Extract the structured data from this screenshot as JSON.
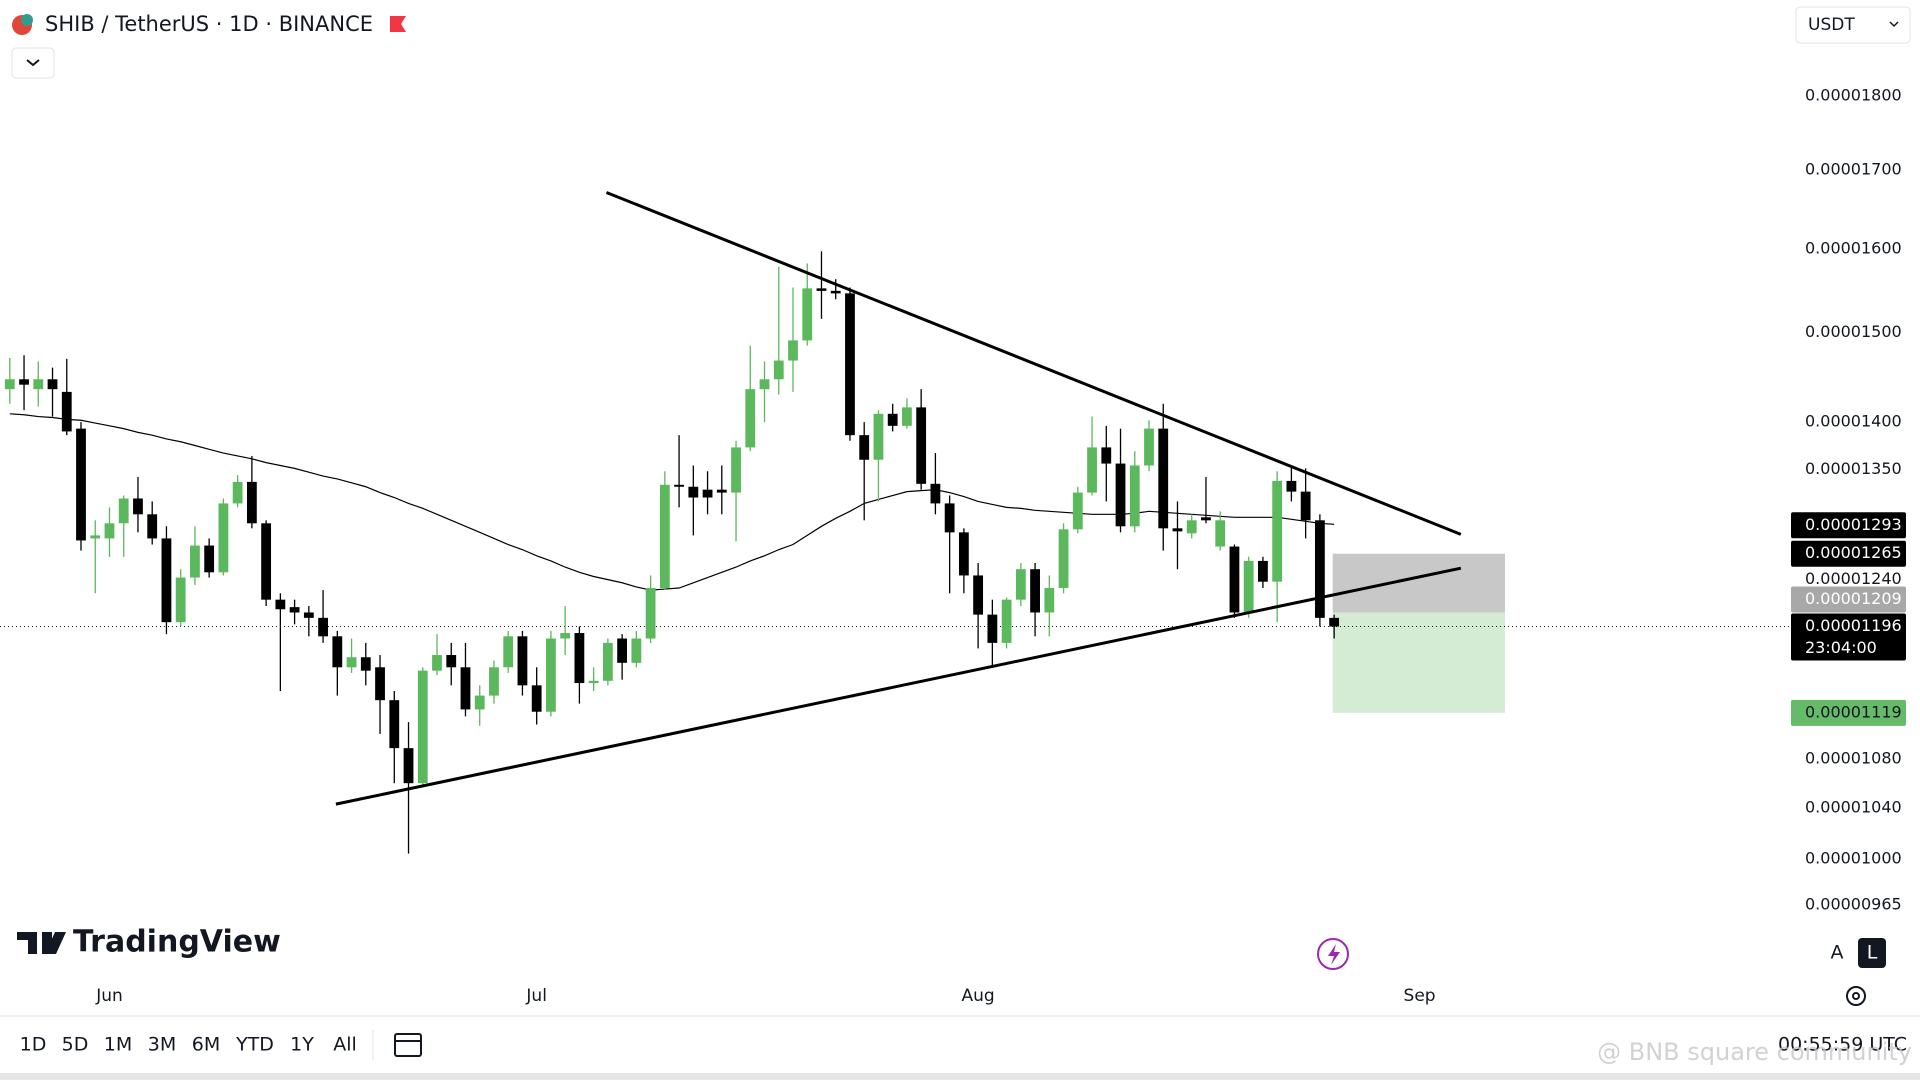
{
  "header": {
    "symbol_title": "SHIB / TetherUS · 1D · BINANCE",
    "currency": "USDT"
  },
  "chart_data": {
    "type": "candlestick",
    "categories": [
      null,
      null,
      null,
      null,
      null,
      null,
      null,
      "Jun",
      null,
      null,
      null,
      null,
      null,
      null,
      null,
      null,
      null,
      null,
      null,
      null,
      null,
      null,
      null,
      null,
      null,
      null,
      null,
      null,
      null,
      null,
      null,
      null,
      null,
      null,
      null,
      null,
      null,
      "Jul",
      null,
      null,
      null,
      null,
      null,
      null,
      null,
      null,
      null,
      null,
      null,
      null,
      null,
      null,
      null,
      null,
      null,
      null,
      null,
      null,
      null,
      null,
      null,
      null,
      null,
      null,
      null,
      null,
      null,
      null,
      "Aug",
      null,
      null,
      null,
      null,
      null,
      null,
      null,
      null,
      null,
      null,
      null,
      null,
      null,
      null,
      null,
      null,
      null,
      null,
      null,
      null,
      null,
      null,
      null,
      null,
      null,
      null,
      null,
      null,
      null,
      null,
      "Sep"
    ],
    "open": [
      1.436e-05,
      1.447e-05,
      1.436e-05,
      1.447e-05,
      1.433e-05,
      1.393e-05,
      1.28e-05,
      1.28e-05,
      1.295e-05,
      1.32e-05,
      1.304e-05,
      1.28e-05,
      1.2e-05,
      1.242e-05,
      1.273e-05,
      1.247e-05,
      1.315e-05,
      1.337e-05,
      1.295e-05,
      1.221e-05,
      1.214e-05,
      1.209e-05,
      1.204e-05,
      1.187e-05,
      1.159e-05,
      1.168e-05,
      1.159e-05,
      1.13e-05,
      1.089e-05,
      1.06e-05,
      1.156e-05,
      1.17e-05,
      1.159e-05,
      1.122e-05,
      1.134e-05,
      1.159e-05,
      1.187e-05,
      1.143e-05,
      1.12e-05,
      1.185e-05,
      1.19e-05,
      1.145e-05,
      1.147e-05,
      1.185e-05,
      1.163e-05,
      1.185e-05,
      1.232e-05,
      1.334e-05,
      1.332e-05,
      1.329e-05,
      1.329e-05,
      1.326e-05,
      1.373e-05,
      1.436e-05,
      1.447e-05,
      1.468e-05,
      1.491e-05,
      1.552e-05,
      1.549e-05,
      1.546e-05,
      1.386e-05,
      1.36e-05,
      1.409e-05,
      1.396e-05,
      1.416e-05,
      1.335e-05,
      1.315e-05,
      1.286e-05,
      1.244e-05,
      1.207e-05,
      1.181e-05,
      1.221e-05,
      1.25e-05,
      1.209e-05,
      1.232e-05,
      1.289e-05,
      1.326e-05,
      1.373e-05,
      1.356e-05,
      1.292e-05,
      1.354e-05,
      1.393e-05,
      1.29e-05,
      1.285e-05,
      1.301e-05,
      1.272e-05,
      1.272e-05,
      1.209e-05,
      1.258e-05,
      1.238e-05,
      1.338e-05,
      1.327e-05,
      1.298e-05,
      1.204e-05,
      null,
      null,
      null,
      null,
      null,
      null
    ],
    "high": [
      1.471e-05,
      1.474e-05,
      1.467e-05,
      1.46e-05,
      1.47e-05,
      1.4e-05,
      1.298e-05,
      1.311e-05,
      1.323e-05,
      1.342e-05,
      1.317e-05,
      1.292e-05,
      1.25e-05,
      1.292e-05,
      1.28e-05,
      1.32e-05,
      1.344e-05,
      1.364e-05,
      1.298e-05,
      1.227e-05,
      1.221e-05,
      1.215e-05,
      1.23e-05,
      1.192e-05,
      1.185e-05,
      1.181e-05,
      1.17e-05,
      1.138e-05,
      1.111e-05,
      1.159e-05,
      1.189e-05,
      1.181e-05,
      1.181e-05,
      1.143e-05,
      1.165e-05,
      1.192e-05,
      1.192e-05,
      1.159e-05,
      1.192e-05,
      1.215e-05,
      1.196e-05,
      1.159e-05,
      1.185e-05,
      1.189e-05,
      1.192e-05,
      1.244e-05,
      1.348e-05,
      1.386e-05,
      1.354e-05,
      1.348e-05,
      1.354e-05,
      1.38e-05,
      1.485e-05,
      1.467e-05,
      1.578e-05,
      1.553e-05,
      1.582e-05,
      1.597e-05,
      1.563e-05,
      1.553e-05,
      1.4e-05,
      1.413e-05,
      1.42e-05,
      1.426e-05,
      1.436e-05,
      1.367e-05,
      1.323e-05,
      1.29e-05,
      1.256e-05,
      1.221e-05,
      1.223e-05,
      1.256e-05,
      1.256e-05,
      1.244e-05,
      1.295e-05,
      1.332e-05,
      1.406e-05,
      1.396e-05,
      1.393e-05,
      1.369e-05,
      1.402e-05,
      1.42e-05,
      1.317e-05,
      1.304e-05,
      1.342e-05,
      1.307e-05,
      1.274e-05,
      1.262e-05,
      1.262e-05,
      1.348e-05,
      1.354e-05,
      1.351e-05,
      1.304e-05,
      1.207e-05,
      null,
      null,
      null,
      null,
      null,
      null
    ],
    "low": [
      1.42e-05,
      1.413e-05,
      1.417e-05,
      1.406e-05,
      1.386e-05,
      1.268e-05,
      1.227e-05,
      1.262e-05,
      1.262e-05,
      1.286e-05,
      1.274e-05,
      1.189e-05,
      1.196e-05,
      1.235e-05,
      1.242e-05,
      1.244e-05,
      1.311e-05,
      1.29e-05,
      1.215e-05,
      1.138e-05,
      1.198e-05,
      1.187e-05,
      1.181e-05,
      1.134e-05,
      1.154e-05,
      1.143e-05,
      1.101e-05,
      1.06e-05,
      1.004e-05,
      1.058e-05,
      1.152e-05,
      1.143e-05,
      1.116e-05,
      1.108e-05,
      1.127e-05,
      1.154e-05,
      1.134e-05,
      1.109e-05,
      1.116e-05,
      1.17e-05,
      1.127e-05,
      1.138e-05,
      1.143e-05,
      1.148e-05,
      1.159e-05,
      1.181e-05,
      1.23e-05,
      1.311e-05,
      1.283e-05,
      1.304e-05,
      1.304e-05,
      1.277e-05,
      1.369e-05,
      1.4e-05,
      1.43e-05,
      1.433e-05,
      1.485e-05,
      1.516e-05,
      1.539e-05,
      1.38e-05,
      1.298e-05,
      1.317e-05,
      1.39e-05,
      1.393e-05,
      1.329e-05,
      1.304e-05,
      1.227e-05,
      1.227e-05,
      1.176e-05,
      1.159e-05,
      1.176e-05,
      1.215e-05,
      1.187e-05,
      1.187e-05,
      1.227e-05,
      1.285e-05,
      1.323e-05,
      1.317e-05,
      1.286e-05,
      1.286e-05,
      1.348e-05,
      1.268e-05,
      1.25e-05,
      1.28e-05,
      1.295e-05,
      1.268e-05,
      1.204e-05,
      1.204e-05,
      1.232e-05,
      1.2e-05,
      1.317e-05,
      1.28e-05,
      1.196e-05,
      1.185e-05,
      null,
      null,
      null,
      null,
      null,
      null
    ],
    "close": [
      1.447e-05,
      1.441e-05,
      1.447e-05,
      1.436e-05,
      1.39e-05,
      1.278e-05,
      1.283e-05,
      1.295e-05,
      1.32e-05,
      1.304e-05,
      1.28e-05,
      1.2e-05,
      1.242e-05,
      1.273e-05,
      1.247e-05,
      1.315e-05,
      1.337e-05,
      1.295e-05,
      1.221e-05,
      1.212e-05,
      1.209e-05,
      1.204e-05,
      1.187e-05,
      1.159e-05,
      1.168e-05,
      1.156e-05,
      1.13e-05,
      1.089e-05,
      1.06e-05,
      1.156e-05,
      1.17e-05,
      1.159e-05,
      1.122e-05,
      1.134e-05,
      1.159e-05,
      1.187e-05,
      1.143e-05,
      1.12e-05,
      1.185e-05,
      1.19e-05,
      1.145e-05,
      1.147e-05,
      1.181e-05,
      1.163e-05,
      1.185e-05,
      1.232e-05,
      1.334e-05,
      1.332e-05,
      1.321e-05,
      1.321e-05,
      1.326e-05,
      1.373e-05,
      1.436e-05,
      1.447e-05,
      1.468e-05,
      1.491e-05,
      1.552e-05,
      1.549e-05,
      1.546e-05,
      1.386e-05,
      1.36e-05,
      1.409e-05,
      1.396e-05,
      1.416e-05,
      1.335e-05,
      1.315e-05,
      1.286e-05,
      1.244e-05,
      1.207e-05,
      1.181e-05,
      1.221e-05,
      1.25e-05,
      1.209e-05,
      1.232e-05,
      1.289e-05,
      1.326e-05,
      1.373e-05,
      1.356e-05,
      1.292e-05,
      1.354e-05,
      1.393e-05,
      1.29e-05,
      1.287e-05,
      1.298e-05,
      1.298e-05,
      1.298e-05,
      1.209e-05,
      1.258e-05,
      1.238e-05,
      1.338e-05,
      1.327e-05,
      1.298e-05,
      1.204e-05,
      1.196e-05,
      null,
      null,
      null,
      null,
      null,
      null
    ],
    "up_color": "#5cb85c",
    "down_color": "#000000",
    "ma": {
      "color": "#000000",
      "values": [
        1.409e-05,
        1.408e-05,
        1.406e-05,
        1.405e-05,
        1.403e-05,
        1.402e-05,
        1.399e-05,
        1.396e-05,
        1.393e-05,
        1.389e-05,
        1.386e-05,
        1.382e-05,
        1.379e-05,
        1.375e-05,
        1.371e-05,
        1.367e-05,
        1.364e-05,
        1.361e-05,
        1.357e-05,
        1.354e-05,
        1.351e-05,
        1.347e-05,
        1.343e-05,
        1.34e-05,
        1.336e-05,
        1.332e-05,
        1.326e-05,
        1.321e-05,
        1.315e-05,
        1.31e-05,
        1.304e-05,
        1.298e-05,
        1.292e-05,
        1.286e-05,
        1.28e-05,
        1.274e-05,
        1.269e-05,
        1.263e-05,
        1.258e-05,
        1.252e-05,
        1.247e-05,
        1.243e-05,
        1.24e-05,
        1.237e-05,
        1.233e-05,
        1.23e-05,
        1.231e-05,
        1.232e-05,
        1.237e-05,
        1.242e-05,
        1.247e-05,
        1.252e-05,
        1.258e-05,
        1.263e-05,
        1.269e-05,
        1.274e-05,
        1.283e-05,
        1.292e-05,
        1.3e-05,
        1.307e-05,
        1.315e-05,
        1.319e-05,
        1.323e-05,
        1.327e-05,
        1.328e-05,
        1.329e-05,
        1.326e-05,
        1.322e-05,
        1.317e-05,
        1.314e-05,
        1.311e-05,
        1.31e-05,
        1.308e-05,
        1.307e-05,
        1.306e-05,
        1.305e-05,
        1.304e-05,
        1.304e-05,
        1.304e-05,
        1.305e-05,
        1.307e-05,
        1.306e-05,
        1.305e-05,
        1.304e-05,
        1.303e-05,
        1.302e-05,
        1.301e-05,
        1.301e-05,
        1.301e-05,
        1.301e-05,
        1.299e-05,
        1.297e-05,
        1.295e-05,
        1.294e-05,
        null,
        null,
        null,
        null,
        null,
        null
      ]
    },
    "log_scale": true,
    "ylim": [
      9.2e-06,
      1.875e-05
    ],
    "yticks": [
      {
        "value": 1.8e-05,
        "label": "0.00001800"
      },
      {
        "value": 1.7e-05,
        "label": "0.00001700"
      },
      {
        "value": 1.6e-05,
        "label": "0.00001600"
      },
      {
        "value": 1.5e-05,
        "label": "0.00001500"
      },
      {
        "value": 1.4e-05,
        "label": "0.00001400"
      },
      {
        "value": 1.35e-05,
        "label": "0.00001350"
      },
      {
        "value": 1.24e-05,
        "label": "0.00001240"
      },
      {
        "value": 1.08e-05,
        "label": "0.00001080"
      },
      {
        "value": 1.04e-05,
        "label": "0.00001040"
      },
      {
        "value": 1e-05,
        "label": "0.00001000"
      },
      {
        "value": 9.65e-06,
        "label": "0.00000965"
      }
    ],
    "trendlines": [
      {
        "start": 1.671e-05,
        "end": 1.284e-05
      },
      {
        "start": 1.043e-05,
        "end": 1.251e-05
      }
    ],
    "position": {
      "stop": {
        "value": 1.265e-05,
        "label": "0.00001265"
      },
      "entry": {
        "value": 1.209e-05,
        "label": "0.00001209"
      },
      "target": {
        "value": 1.119e-05,
        "label": "0.00001119"
      }
    },
    "price_labels": [
      {
        "value": 1.293e-05,
        "label": "0.00001293"
      }
    ],
    "last_price": {
      "value": 1.196e-05,
      "label": "0.00001196",
      "countdown": "23:04:00"
    }
  },
  "branding": "TradingView",
  "footer": {
    "ranges": [
      "1D",
      "5D",
      "1M",
      "3M",
      "6M",
      "YTD",
      "1Y",
      "All"
    ],
    "clock": "00:55:59 UTC"
  },
  "buttons": {
    "auto": "A",
    "log": "L"
  },
  "watermark": "@ BNB square community"
}
